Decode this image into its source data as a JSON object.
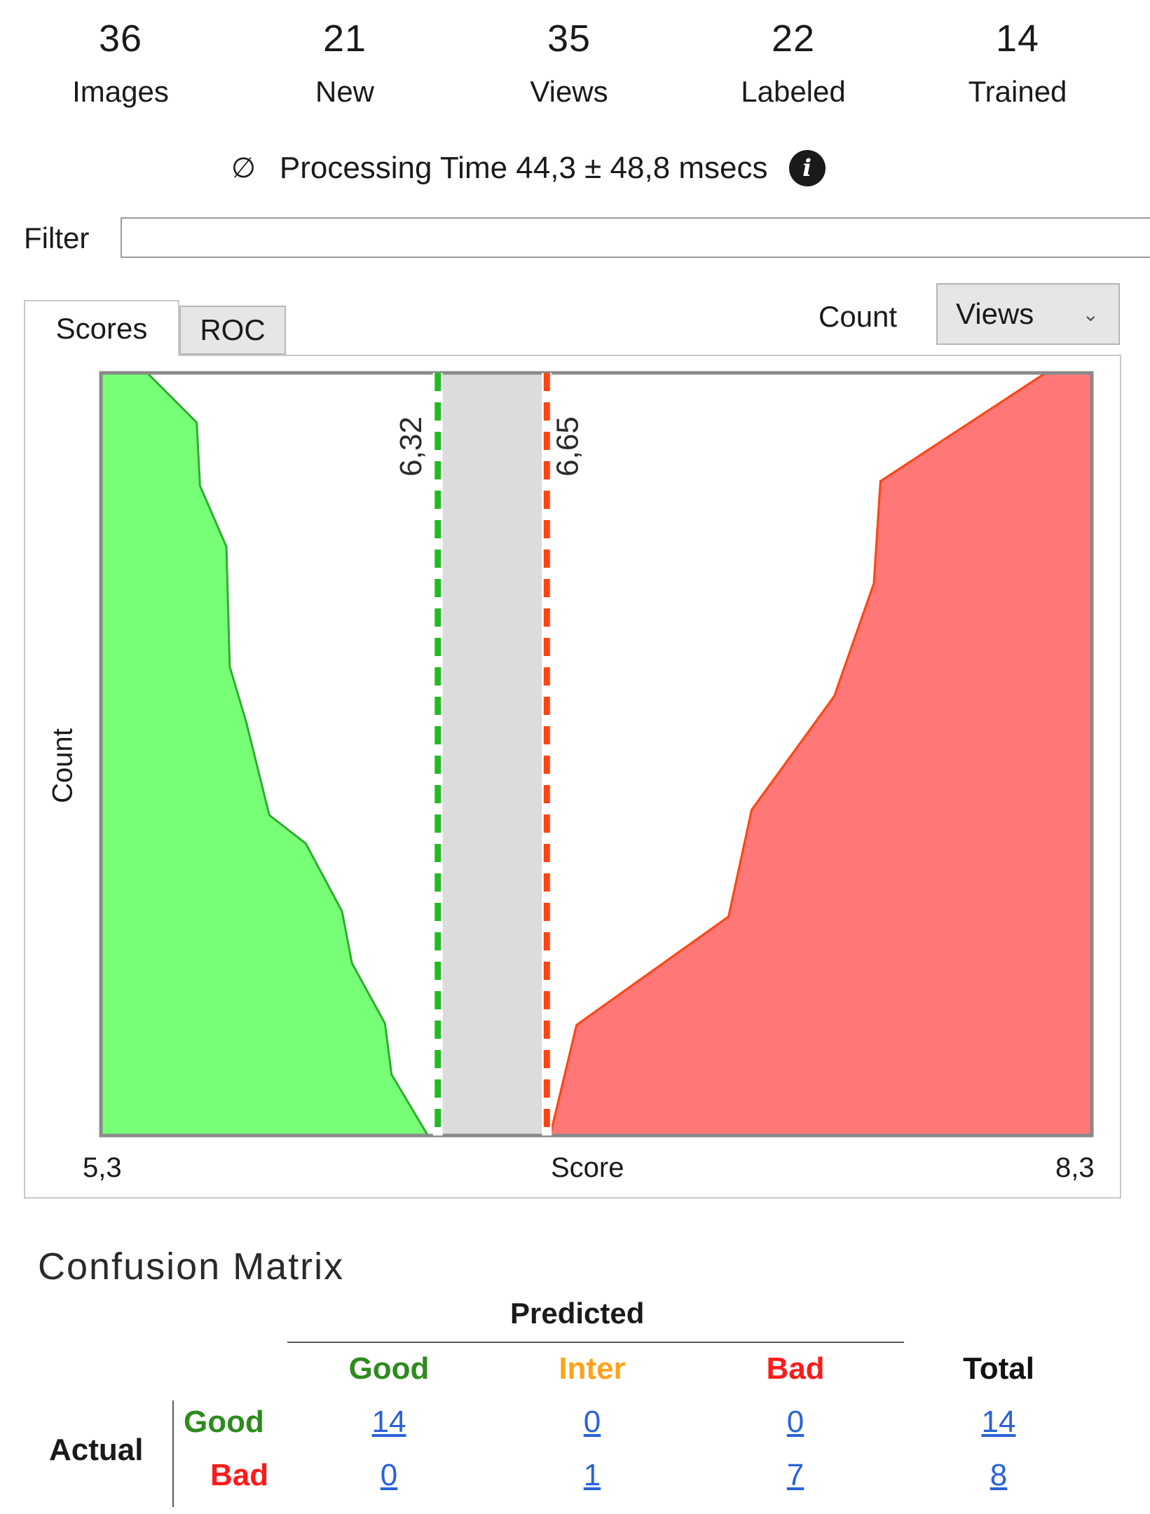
{
  "stats": [
    {
      "value": "36",
      "label": "Images"
    },
    {
      "value": "21",
      "label": "New"
    },
    {
      "value": "35",
      "label": "Views"
    },
    {
      "value": "22",
      "label": "Labeled"
    },
    {
      "value": "14",
      "label": "Trained"
    }
  ],
  "processing": {
    "symbol": "∅",
    "text": "Processing Time 44,3 ± 48,8 msecs",
    "info_icon": "info-icon"
  },
  "filter": {
    "label": "Filter",
    "value": "",
    "placeholder": ""
  },
  "tabs": [
    {
      "label": "Scores",
      "active": true
    },
    {
      "label": "ROC",
      "active": false
    }
  ],
  "count_control": {
    "label": "Count",
    "selected": "Views"
  },
  "chart_data": {
    "type": "area",
    "xlabel": "Score",
    "ylabel": "Count",
    "x_min_label": "5,3",
    "x_max_label": "8,3",
    "xlim": [
      5.3,
      8.3
    ],
    "ylim": [
      0,
      1
    ],
    "grid": false,
    "thresholds": [
      {
        "value": 6.32,
        "label": "6,32",
        "color": "#22bb22"
      },
      {
        "value": 6.65,
        "label": "6,65",
        "color": "#ff4411"
      }
    ],
    "band_color": "#dcdcdc",
    "series": [
      {
        "color": "#77ff77",
        "stroke": "#33aa33",
        "points": [
          [
            5.3,
            1.0
          ],
          [
            5.44,
            1.0
          ],
          [
            5.59,
            0.935
          ],
          [
            5.6,
            0.852
          ],
          [
            5.68,
            0.772
          ],
          [
            5.69,
            0.615
          ],
          [
            5.74,
            0.542
          ],
          [
            5.81,
            0.42
          ],
          [
            5.92,
            0.383
          ],
          [
            6.03,
            0.294
          ],
          [
            6.06,
            0.226
          ],
          [
            6.16,
            0.147
          ],
          [
            6.18,
            0.08
          ],
          [
            6.29,
            0.0
          ]
        ]
      },
      {
        "color": "#ff7777",
        "stroke": "#ff4411",
        "points": [
          [
            6.66,
            0.0
          ],
          [
            6.74,
            0.145
          ],
          [
            7.2,
            0.287
          ],
          [
            7.27,
            0.427
          ],
          [
            7.52,
            0.576
          ],
          [
            7.64,
            0.724
          ],
          [
            7.66,
            0.858
          ],
          [
            8.16,
            1.0
          ],
          [
            8.3,
            1.0
          ]
        ]
      }
    ]
  },
  "confusion_matrix": {
    "title": "Confusion Matrix",
    "predicted_label": "Predicted",
    "actual_label": "Actual",
    "columns": [
      {
        "label": "Good",
        "color": "#2e8b1e"
      },
      {
        "label": "Inter",
        "color": "#ffa21a"
      },
      {
        "label": "Bad",
        "color": "#ff1a1a"
      },
      {
        "label": "Total",
        "color": "#111111"
      }
    ],
    "rows": [
      {
        "label": "Good",
        "color": "#2e8b1e",
        "values": [
          "14",
          "0",
          "0",
          "14"
        ]
      },
      {
        "label": "Bad",
        "color": "#ff1a1a",
        "values": [
          "0",
          "1",
          "7",
          "8"
        ]
      }
    ]
  }
}
